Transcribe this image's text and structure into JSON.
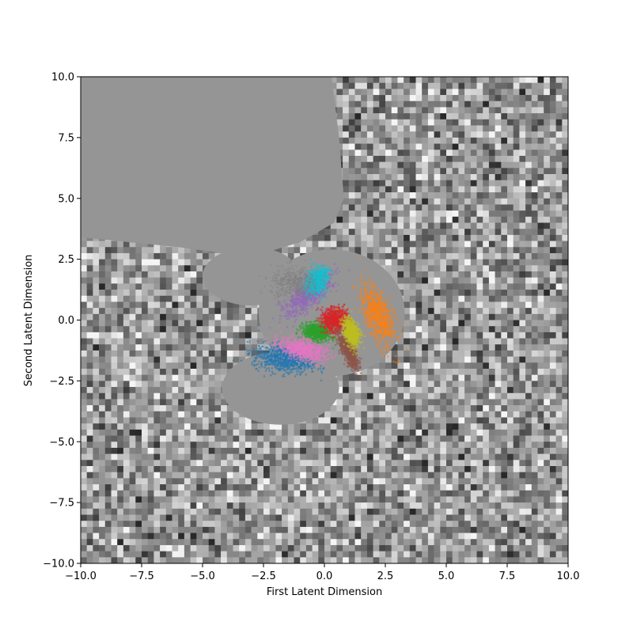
{
  "chart_data": {
    "type": "scatter",
    "title": "",
    "xlabel": "First Latent Dimension",
    "ylabel": "Second Latent Dimension",
    "xlim": [
      -10,
      10
    ],
    "ylim": [
      -10,
      10
    ],
    "xticks": [
      -10,
      -7.5,
      -5,
      -2.5,
      0,
      2.5,
      5,
      7.5,
      10
    ],
    "yticks": [
      -10,
      -7.5,
      -5,
      -2.5,
      0,
      2.5,
      5,
      7.5,
      10
    ],
    "xtick_labels": [
      "−10.0",
      "−7.5",
      "−5.0",
      "−2.5",
      "0.0",
      "2.5",
      "5.0",
      "7.5",
      "10.0"
    ],
    "ytick_labels": [
      "−10.0",
      "−7.5",
      "−5.0",
      "−2.5",
      "0.0",
      "2.5",
      "5.0",
      "7.5",
      "10.0"
    ],
    "grid": false,
    "legend": "none",
    "background": "grayscale noise image of decoded samples; uniform gray region in upper-left and around the clusters",
    "series": [
      {
        "color": "#1f77b4",
        "center": [
          -1.7,
          -1.6
        ],
        "spread": [
          1.2,
          0.55
        ],
        "angle_deg": -10
      },
      {
        "color": "#ff7f0e",
        "center": [
          2.2,
          0.2
        ],
        "spread": [
          0.55,
          1.35
        ],
        "angle_deg": 20
      },
      {
        "color": "#2ca02c",
        "center": [
          -0.3,
          -0.5
        ],
        "spread": [
          0.6,
          0.35
        ],
        "angle_deg": -10
      },
      {
        "color": "#d62728",
        "center": [
          0.4,
          0.0
        ],
        "spread": [
          0.55,
          0.5
        ],
        "angle_deg": 30
      },
      {
        "color": "#9467bd",
        "center": [
          -0.7,
          1.0
        ],
        "spread": [
          0.5,
          1.2
        ],
        "angle_deg": -50
      },
      {
        "color": "#8c564b",
        "center": [
          1.0,
          -1.3
        ],
        "spread": [
          0.25,
          0.8
        ],
        "angle_deg": 25
      },
      {
        "color": "#e377c2",
        "center": [
          -0.9,
          -1.2
        ],
        "spread": [
          1.0,
          0.4
        ],
        "angle_deg": -15
      },
      {
        "color": "#17becf",
        "center": [
          -0.3,
          1.6
        ],
        "spread": [
          0.4,
          0.6
        ],
        "angle_deg": -30
      },
      {
        "color": "#bcbd22",
        "center": [
          1.1,
          -0.5
        ],
        "spread": [
          0.3,
          0.6
        ],
        "angle_deg": 15
      },
      {
        "color": "#7f7f7f",
        "center": [
          -1.2,
          1.5
        ],
        "spread": [
          1.0,
          0.7
        ],
        "angle_deg": 0
      }
    ]
  }
}
